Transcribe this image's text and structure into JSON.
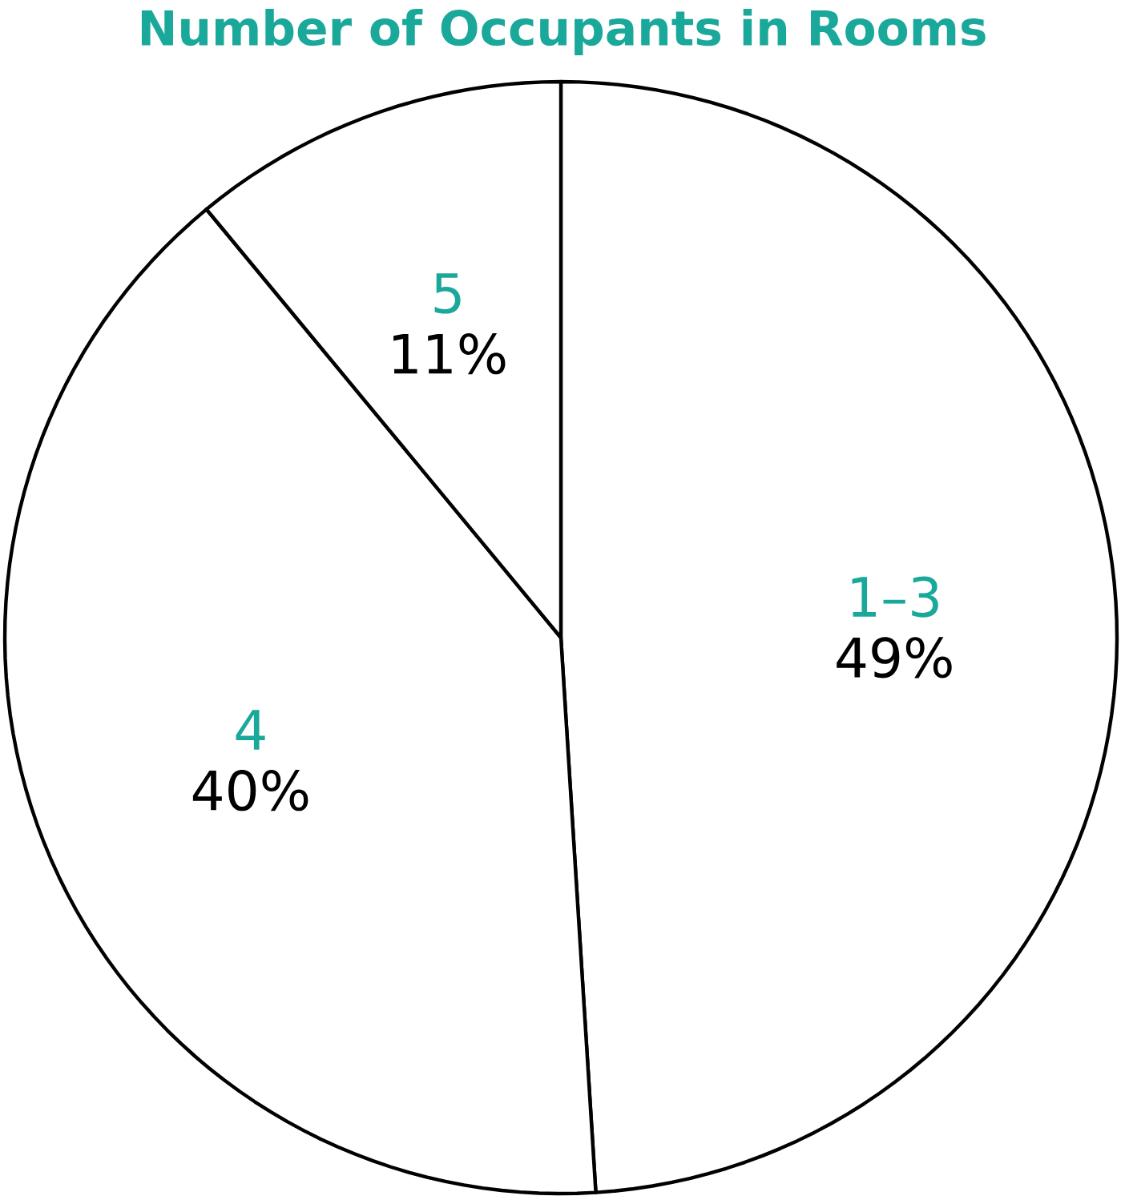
{
  "chart_data": {
    "type": "pie",
    "title": "Number of Occupants in Rooms",
    "categories": [
      "1–3",
      "4",
      "5"
    ],
    "values": [
      49,
      40,
      11
    ],
    "colors": [
      "#ffffff",
      "#ffffff",
      "#ffffff"
    ],
    "value_labels": [
      "49%",
      "40%",
      "11%"
    ]
  }
}
